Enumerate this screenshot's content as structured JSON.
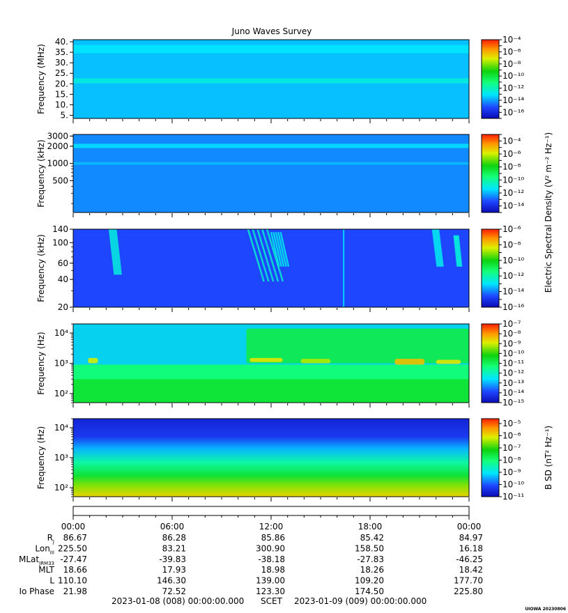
{
  "figure": {
    "title": "Juno Waves Survey",
    "footer": {
      "start": "2023-01-08 (008) 00:00:00.000",
      "scet": "SCET",
      "end": "2023-01-09 (009) 00:00:00.000",
      "credit": "UIOWA 20230806"
    },
    "shared_colorbar_label": "Electric Spectral Density (V² m⁻² Hz⁻¹)",
    "bsd_colorbar_label": "B SD (nT² Hz⁻¹)"
  },
  "chart_data": [
    {
      "type": "heatmap",
      "name": "panel-hfr-high",
      "ylabel": "Frequency (MHz)",
      "yscale": "linear",
      "ylim": [
        3.5,
        41
      ],
      "yticks": [
        5,
        10,
        15,
        20,
        25,
        30,
        35,
        40
      ],
      "ytick_labels": [
        "5.",
        "10.",
        "15.",
        "20.",
        "25.",
        "30.",
        "35.",
        "40."
      ],
      "background_exponent": -13.6,
      "features": [
        {
          "kind": "band",
          "f_lo": 20.2,
          "f_hi": 22.6,
          "exponent": -12.6
        },
        {
          "kind": "band",
          "f_lo": 34.5,
          "f_hi": 38.5,
          "exponent": -13.1
        }
      ],
      "colorbar": {
        "exp_min": -17,
        "exp_max": -4,
        "labels": [
          -16,
          -14,
          -12,
          -10,
          -8,
          -6,
          -4
        ]
      }
    },
    {
      "type": "heatmap",
      "name": "panel-hfr-low",
      "ylabel": "Frequency (kHz)",
      "yscale": "log",
      "ylim": [
        140,
        3200
      ],
      "yticks": [
        500,
        1000,
        2000,
        3000
      ],
      "ytick_labels": [
        "500",
        "1000",
        "2000",
        "3000"
      ],
      "background_exponent": -12.5,
      "features": [
        {
          "kind": "band",
          "f_lo": 1850,
          "f_hi": 2200,
          "exponent": -11.5
        },
        {
          "kind": "band",
          "f_lo": 950,
          "f_hi": 1050,
          "exponent": -11.9
        }
      ],
      "colorbar": {
        "exp_min": -15,
        "exp_max": -3,
        "labels": [
          -14,
          -12,
          -10,
          -8,
          -6,
          -4
        ]
      }
    },
    {
      "type": "heatmap",
      "name": "panel-lfr-high",
      "ylabel": "Frequency (kHz)",
      "yscale": "log",
      "ylim": [
        20,
        140
      ],
      "yticks": [
        20,
        40,
        60,
        100,
        140
      ],
      "ytick_labels": [
        "20",
        "40",
        "60",
        "100",
        "140"
      ],
      "background_exponent": -14.6,
      "features": [
        {
          "kind": "arc",
          "t0": 2.2,
          "t1": 3.0,
          "f_lo": 45,
          "f_hi": 140,
          "exponent": -12.6
        },
        {
          "kind": "arc",
          "t0": 10.6,
          "t1": 13.0,
          "f_lo": 38,
          "f_hi": 140,
          "exponent": -12.4
        },
        {
          "kind": "arc",
          "t0": 12.0,
          "t1": 13.2,
          "f_lo": 55,
          "f_hi": 130,
          "exponent": -12.8
        },
        {
          "kind": "arc",
          "t0": 21.8,
          "t1": 22.5,
          "f_lo": 55,
          "f_hi": 140,
          "exponent": -12.8
        },
        {
          "kind": "arc",
          "t0": 23.1,
          "t1": 23.6,
          "f_lo": 55,
          "f_hi": 120,
          "exponent": -12.6
        },
        {
          "kind": "line",
          "t": 16.4,
          "exponent": -13.2
        }
      ],
      "colorbar": {
        "exp_min": -16,
        "exp_max": -6,
        "labels": [
          -16,
          -14,
          -12,
          -10,
          -8,
          -6
        ]
      }
    },
    {
      "type": "heatmap",
      "name": "panel-lfr-low",
      "ylabel": "Frequency (Hz)",
      "yscale": "log",
      "ylim": [
        50,
        20000
      ],
      "yticks": [
        100,
        1000,
        10000
      ],
      "ytick_labels": [
        "10²",
        "10³",
        "10⁴"
      ],
      "background_exponent": -11,
      "features": [
        {
          "kind": "band",
          "f_lo": 50,
          "f_hi": 300,
          "exponent": -10.6
        },
        {
          "kind": "band",
          "f_lo": 300,
          "f_hi": 900,
          "exponent": -11.4
        },
        {
          "kind": "band",
          "f_lo": 900,
          "f_hi": 20000,
          "exponent": -12.8
        },
        {
          "kind": "patch",
          "t0": 10.5,
          "t1": 24,
          "f_lo": 1000,
          "f_hi": 14000,
          "exponent": -10.8
        },
        {
          "kind": "patch",
          "t0": 10.7,
          "t1": 12.7,
          "f_lo": 1100,
          "f_hi": 1500,
          "exponent": -8.8
        },
        {
          "kind": "patch",
          "t0": 13.8,
          "t1": 15.6,
          "f_lo": 1000,
          "f_hi": 1400,
          "exponent": -9.2
        },
        {
          "kind": "patch",
          "t0": 19.5,
          "t1": 21.3,
          "f_lo": 900,
          "f_hi": 1400,
          "exponent": -8.4
        },
        {
          "kind": "patch",
          "t0": 22.0,
          "t1": 23.5,
          "f_lo": 950,
          "f_hi": 1300,
          "exponent": -8.8
        },
        {
          "kind": "patch",
          "t0": 0.9,
          "t1": 1.5,
          "f_lo": 1000,
          "f_hi": 1500,
          "exponent": -9.0
        }
      ],
      "colorbar": {
        "exp_min": -15,
        "exp_max": -7,
        "labels": [
          -15,
          -14,
          -13,
          -12,
          -11,
          -10,
          -9,
          -8,
          -7
        ]
      }
    },
    {
      "type": "heatmap",
      "name": "panel-bsd",
      "ylabel": "Frequency (Hz)",
      "yscale": "log",
      "ylim": [
        50,
        20000
      ],
      "yticks": [
        100,
        1000,
        10000
      ],
      "ytick_labels": [
        "10²",
        "10³",
        "10⁴"
      ],
      "gradient_stops": [
        {
          "f": 20000,
          "exponent": -10.6
        },
        {
          "f": 5000,
          "exponent": -10.3
        },
        {
          "f": 2000,
          "exponent": -9.4
        },
        {
          "f": 700,
          "exponent": -8.4
        },
        {
          "f": 250,
          "exponent": -7.5
        },
        {
          "f": 120,
          "exponent": -6.6
        },
        {
          "f": 50,
          "exponent": -5.9
        }
      ],
      "colorbar": {
        "exp_min": -11,
        "exp_max": -4.6,
        "labels": [
          -11,
          -10,
          -9,
          -8,
          -7,
          -6,
          -5
        ]
      }
    }
  ],
  "time_axis": {
    "range_hours": [
      0,
      24
    ],
    "ticks": [
      0,
      6,
      12,
      18,
      24
    ],
    "tick_labels": [
      "00:00",
      "06:00",
      "12:00",
      "18:00",
      "00:00"
    ],
    "minor_step_hours": 1
  },
  "ephemeris": [
    {
      "label": "R",
      "sub": "J",
      "values": [
        "86.67",
        "86.28",
        "85.86",
        "85.42",
        "84.97"
      ]
    },
    {
      "label": "Lon",
      "sub": "III",
      "values": [
        "225.50",
        "83.21",
        "300.90",
        "158.50",
        "16.18"
      ]
    },
    {
      "label": "MLat",
      "sub": "JRM33",
      "values": [
        "-27.47",
        "-39.83",
        "-38.18",
        "-27.83",
        "-46.25"
      ]
    },
    {
      "label": "MLT",
      "sub": "",
      "values": [
        "18.66",
        "17.93",
        "18.98",
        "18.26",
        "18.42"
      ]
    },
    {
      "label": "L",
      "sub": "",
      "values": [
        "110.10",
        "146.30",
        "139.00",
        "109.20",
        "177.70"
      ]
    },
    {
      "label": "Io Phase",
      "sub": "",
      "values": [
        "21.98",
        "72.52",
        "123.30",
        "174.50",
        "225.80"
      ]
    }
  ]
}
